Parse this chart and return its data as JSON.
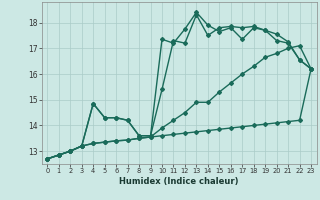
{
  "title": "",
  "xlabel": "Humidex (Indice chaleur)",
  "ylabel": "",
  "bg_color": "#cce8e4",
  "plot_bg_color": "#cce8e4",
  "grid_color": "#aaccc8",
  "line_color": "#1a6b5a",
  "xlim": [
    -0.5,
    23.5
  ],
  "ylim": [
    12.5,
    18.8
  ],
  "yticks": [
    13,
    14,
    15,
    16,
    17,
    18
  ],
  "xticks": [
    0,
    1,
    2,
    3,
    4,
    5,
    6,
    7,
    8,
    9,
    10,
    11,
    12,
    13,
    14,
    15,
    16,
    17,
    18,
    19,
    20,
    21,
    22,
    23
  ],
  "line1_x": [
    0,
    1,
    2,
    3,
    4,
    5,
    6,
    7,
    8,
    9,
    10,
    11,
    12,
    13,
    14,
    15,
    16,
    17,
    18,
    19,
    20,
    21,
    22,
    23
  ],
  "line1_y": [
    12.7,
    12.85,
    13.0,
    13.2,
    13.3,
    13.35,
    13.4,
    13.43,
    13.5,
    13.55,
    13.6,
    13.65,
    13.7,
    13.75,
    13.8,
    13.85,
    13.9,
    13.95,
    14.0,
    14.05,
    14.1,
    14.15,
    14.2,
    16.2
  ],
  "line2_x": [
    0,
    1,
    2,
    3,
    4,
    5,
    6,
    7,
    8,
    9,
    10,
    11,
    12,
    13,
    14,
    15,
    16,
    17,
    18,
    19,
    20,
    21,
    22,
    23
  ],
  "line2_y": [
    12.7,
    12.85,
    13.0,
    13.2,
    13.3,
    13.35,
    13.4,
    13.43,
    13.5,
    13.55,
    13.9,
    14.2,
    14.5,
    14.9,
    14.9,
    15.3,
    15.65,
    16.0,
    16.3,
    16.65,
    16.8,
    17.0,
    17.1,
    16.2
  ],
  "line3_x": [
    0,
    1,
    2,
    3,
    4,
    5,
    6,
    7,
    8,
    9,
    10,
    11,
    12,
    13,
    14,
    15,
    16,
    17,
    18,
    19,
    20,
    21,
    22,
    23
  ],
  "line3_y": [
    12.7,
    12.85,
    13.0,
    13.2,
    14.85,
    14.3,
    14.3,
    14.2,
    13.6,
    13.6,
    15.4,
    17.3,
    17.2,
    18.3,
    17.5,
    17.8,
    17.85,
    17.8,
    17.85,
    17.7,
    17.55,
    17.25,
    16.55,
    16.2
  ],
  "line4_x": [
    0,
    1,
    2,
    3,
    4,
    5,
    6,
    7,
    8,
    9,
    10,
    11,
    12,
    13,
    14,
    15,
    16,
    17,
    18,
    19,
    20,
    21,
    22,
    23
  ],
  "line4_y": [
    12.7,
    12.85,
    13.0,
    13.2,
    14.85,
    14.3,
    14.3,
    14.2,
    13.6,
    13.6,
    17.35,
    17.2,
    17.75,
    18.4,
    17.9,
    17.65,
    17.8,
    17.35,
    17.8,
    17.7,
    17.3,
    17.2,
    16.55,
    16.2
  ],
  "marker": "D",
  "marker_size": 2,
  "line_width": 1.0
}
